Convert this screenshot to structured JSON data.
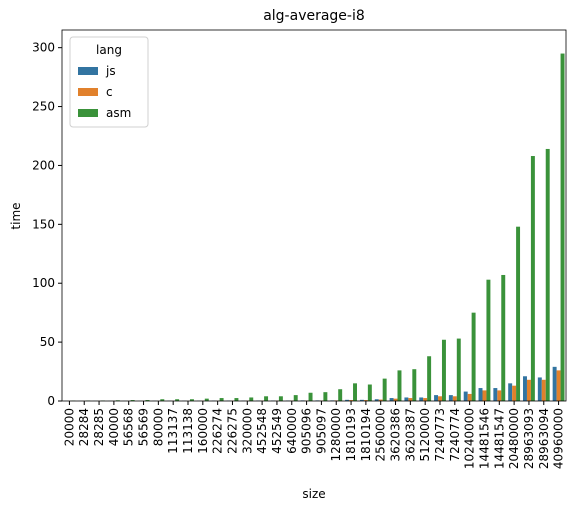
{
  "chart_data": {
    "type": "bar",
    "title": "alg-average-i8",
    "x_label": "size",
    "y_label": "time",
    "categories": [
      "20000",
      "28284",
      "28285",
      "40000",
      "56568",
      "56569",
      "80000",
      "113137",
      "113138",
      "160000",
      "226274",
      "226275",
      "320000",
      "452548",
      "452549",
      "640000",
      "905096",
      "905097",
      "1280000",
      "1810193",
      "1810194",
      "2560000",
      "3620386",
      "3620387",
      "5120000",
      "7240773",
      "7240774",
      "10240000",
      "14481546",
      "14481547",
      "20480000",
      "28963093",
      "28963094",
      "40960000"
    ],
    "series": [
      {
        "name": "js",
        "color": "#3274a1",
        "values": [
          0.1,
          0.1,
          0.1,
          0.1,
          0.1,
          0.1,
          0.2,
          0.2,
          0.2,
          0.2,
          0.3,
          0.3,
          0.3,
          0.4,
          0.4,
          0.4,
          0.5,
          0.5,
          0.5,
          1,
          1,
          1.5,
          2.5,
          3,
          3,
          5,
          5,
          8,
          11,
          11,
          15,
          21,
          20,
          29
        ]
      },
      {
        "name": "c",
        "color": "#e1812c",
        "values": [
          0.1,
          0.1,
          0.1,
          0.1,
          0.1,
          0.1,
          0.1,
          0.1,
          0.1,
          0.2,
          0.2,
          0.2,
          0.3,
          0.3,
          0.3,
          0.4,
          0.4,
          0.4,
          0.5,
          0.8,
          0.8,
          1.2,
          2,
          2.5,
          2.5,
          4,
          4,
          6,
          9,
          9,
          13,
          18,
          18,
          26
        ]
      },
      {
        "name": "asm",
        "color": "#3a923a",
        "values": [
          0.3,
          0.4,
          0.4,
          0.6,
          0.8,
          0.8,
          1.5,
          1.5,
          1.5,
          2,
          2.5,
          2.5,
          3,
          4,
          4,
          5,
          7,
          7.5,
          10,
          15,
          14,
          19,
          26,
          27,
          38,
          52,
          53,
          75,
          103,
          107,
          148,
          208,
          214,
          295
        ]
      }
    ],
    "legend_title": "lang",
    "legend": "upper left",
    "ylim": [
      0,
      315
    ],
    "yticks": [
      0,
      50,
      100,
      150,
      200,
      250,
      300
    ]
  }
}
